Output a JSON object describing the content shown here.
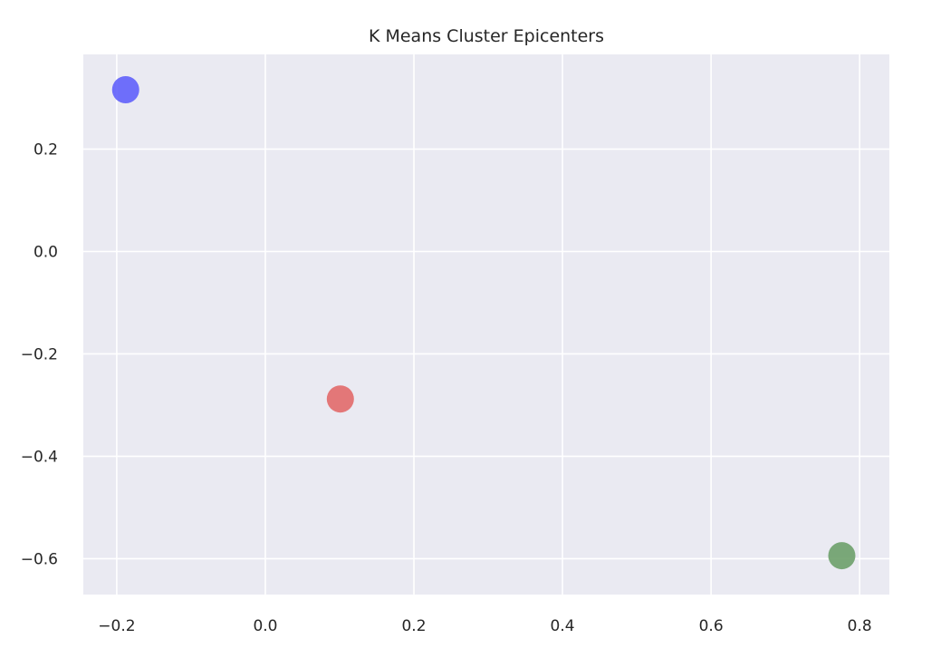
{
  "chart_data": {
    "type": "scatter",
    "title": "K Means Cluster Epicenters",
    "xlabel": "",
    "ylabel": "",
    "xlim": [
      -0.245,
      0.84
    ],
    "ylim": [
      -0.67,
      0.385
    ],
    "xticks": [
      -0.2,
      0.0,
      0.2,
      0.4,
      0.6,
      0.8
    ],
    "xtick_labels": [
      "−0.2",
      "0.0",
      "0.2",
      "0.4",
      "0.6",
      "0.8"
    ],
    "yticks": [
      -0.6,
      -0.4,
      -0.2,
      0.0,
      0.2
    ],
    "ytick_labels": [
      "−0.6",
      "−0.4",
      "−0.2",
      "0.0",
      "0.2"
    ],
    "grid": true,
    "background": "#eaeaf2",
    "grid_color": "#ffffff",
    "points": [
      {
        "x": -0.188,
        "y": 0.316,
        "color": "#6161fb"
      },
      {
        "x": 0.101,
        "y": -0.288,
        "color": "#e26a6a"
      },
      {
        "x": 0.776,
        "y": -0.594,
        "color": "#6da06a"
      }
    ]
  }
}
